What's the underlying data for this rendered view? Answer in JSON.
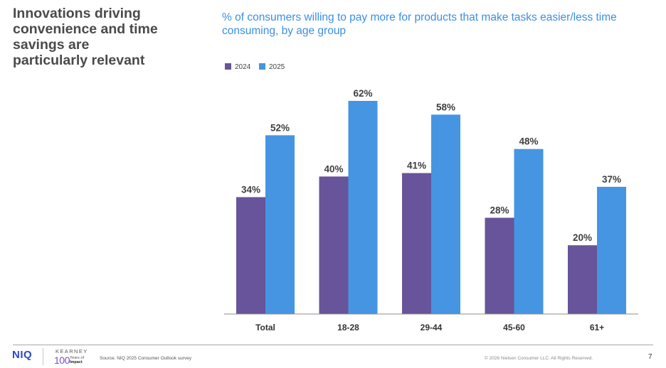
{
  "headline": "Innovations driving\nconvenience and time\nsavings are\nparticularly relevant",
  "subtitle": "% of consumers willing to pay more for products that make tasks easier/less time consuming, by age group",
  "colors": {
    "series_2024": "#67549a",
    "series_2025": "#4695e2",
    "axis": "#8c8c8c"
  },
  "chart_data": {
    "type": "bar",
    "title": "% of consumers willing to pay more for products that make tasks easier/less time consuming, by age group",
    "categories": [
      "Total",
      "18-28",
      "29-44",
      "45-60",
      "61+"
    ],
    "series": [
      {
        "name": "2024",
        "values": [
          34,
          40,
          41,
          28,
          20
        ],
        "labels": [
          "34%",
          "40%",
          "41%",
          "28%",
          "20%"
        ]
      },
      {
        "name": "2025",
        "values": [
          52,
          62,
          58,
          48,
          37
        ],
        "labels": [
          "52%",
          "62%",
          "58%",
          "48%",
          "37%"
        ]
      }
    ],
    "xlabel": "",
    "ylabel": "",
    "ylim": [
      0,
      62
    ],
    "grid": false,
    "legend": "top-left"
  },
  "footer": {
    "brand": "NIQ",
    "partner": "KEARNEY",
    "partner_badge_number": "100",
    "partner_badge_text_1": "Years of",
    "partner_badge_text_2": "Impact",
    "source": "Source: NIQ 2025 Consumer Outlook survey",
    "copyright": "© 2026 Nielsen Consumer LLC. All Rights Reserved.",
    "page_number": "7"
  }
}
